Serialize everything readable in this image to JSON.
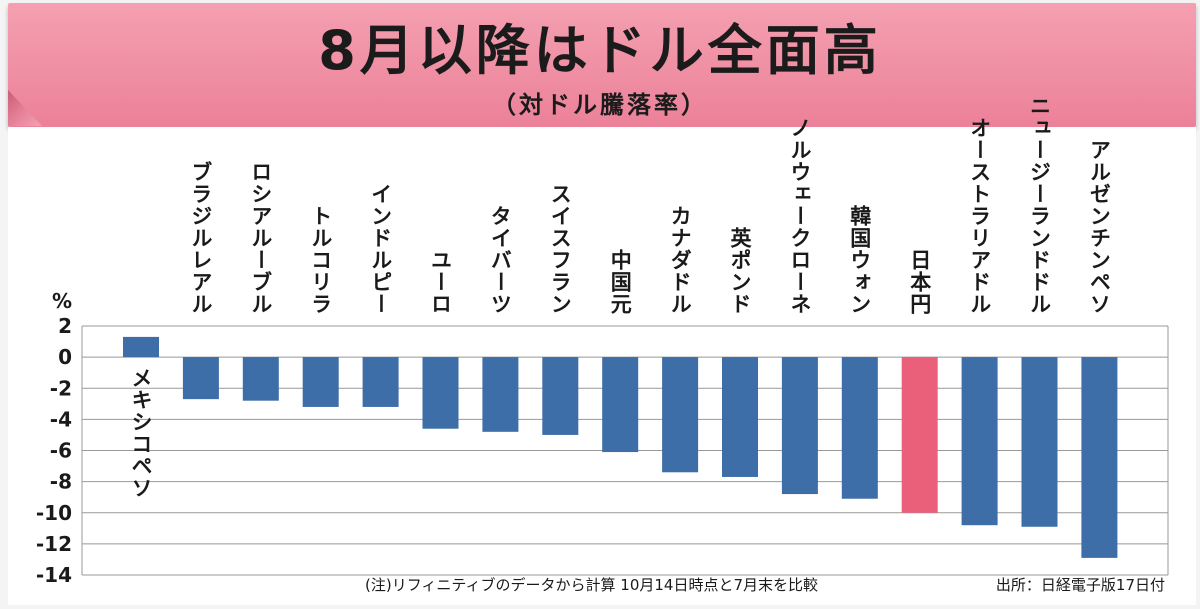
{
  "header": {
    "title": "8月以降はドル全面高",
    "subtitle": "（対ドル騰落率）"
  },
  "chart_data": {
    "type": "bar",
    "title": "8月以降はドル全面高",
    "subtitle": "（対ドル騰落率）",
    "ylabel": "%",
    "ylim": [
      -14,
      2
    ],
    "yticks": [
      2,
      0,
      -2,
      -4,
      -6,
      -8,
      -10,
      -12,
      -14
    ],
    "ytick_labels": [
      "2",
      "0",
      "-2",
      "-4",
      "-6",
      "-8",
      "-10",
      "-12",
      "-14"
    ],
    "grid": true,
    "categories": [
      "メキシコペソ",
      "ブラジルレアル",
      "ロシアルーブル",
      "トルコリラ",
      "インドルピー",
      "ユーロ",
      "タイバーツ",
      "スイスフラン",
      "中国元",
      "カナダドル",
      "英ポンド",
      "ノルウェークローネ",
      "韓国ウォン",
      "日本円",
      "オーストラリアドル",
      "ニュージーランドドル",
      "アルゼンチンペソ"
    ],
    "values": [
      1.3,
      -2.7,
      -2.8,
      -3.2,
      -3.2,
      -4.6,
      -4.8,
      -5.0,
      -6.1,
      -7.4,
      -7.7,
      -8.8,
      -9.1,
      -10.0,
      -10.8,
      -10.9,
      -12.9
    ],
    "colors": {
      "default": "#3e6ea8",
      "highlight": "#ea5f7a"
    },
    "highlight": "日本円",
    "note": "(注)リフィニティブのデータから計算  10月14日時点と7月末を比較",
    "source": "出所：日経電子版17日付"
  }
}
